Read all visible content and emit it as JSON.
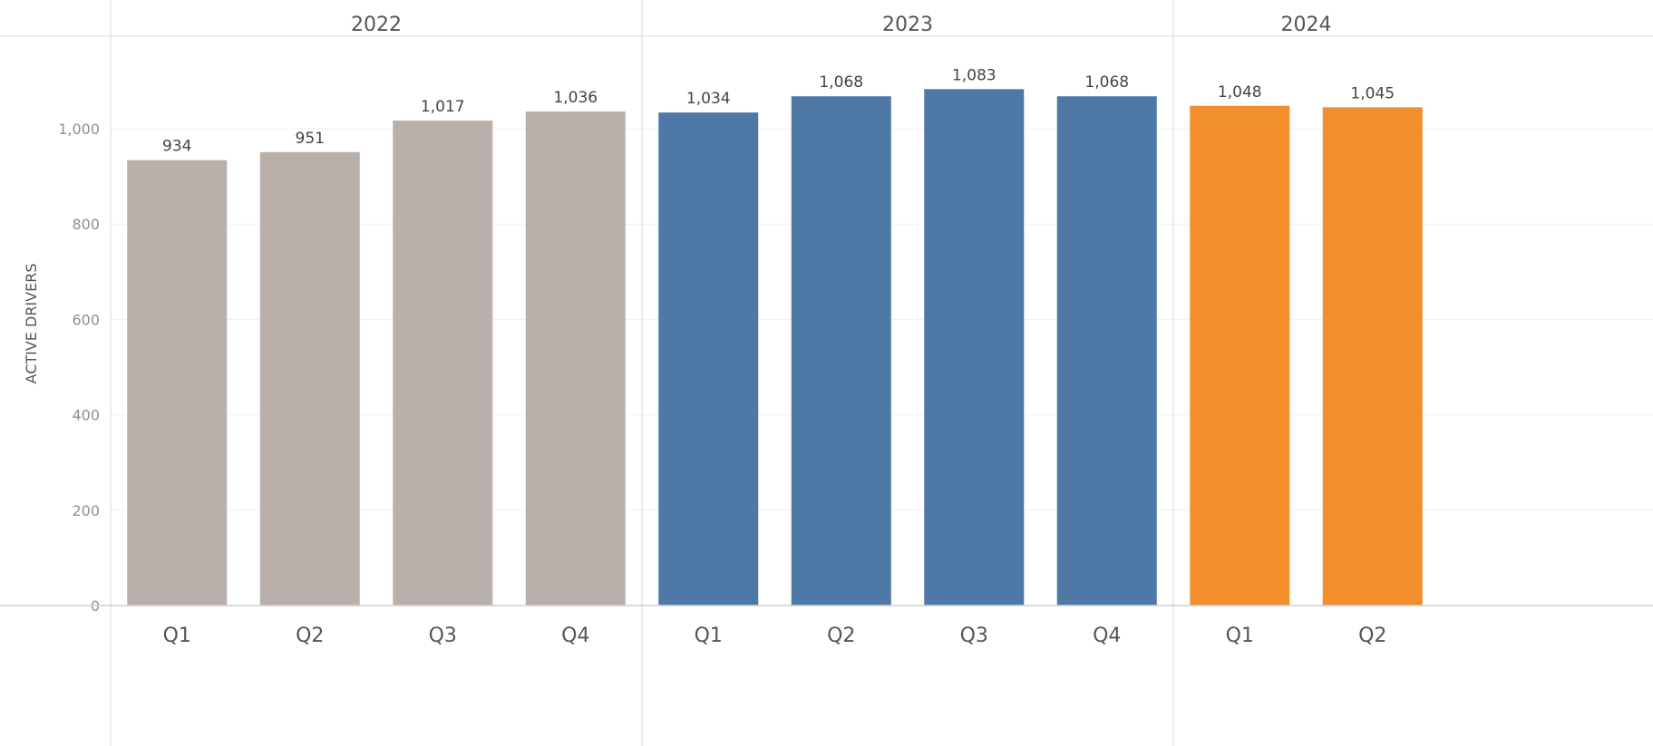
{
  "chart_data": {
    "type": "bar",
    "ylabel": "ACTIVE DRIVERS",
    "ylim": [
      0,
      1200
    ],
    "yticks": [
      0,
      200,
      400,
      600,
      800,
      1000
    ],
    "ytick_labels": [
      "0",
      "200",
      "400",
      "600",
      "800",
      "1,000"
    ],
    "grid": true,
    "groups": [
      {
        "name": "2022",
        "color": "#b9b0ab",
        "categories": [
          "Q1",
          "Q2",
          "Q3",
          "Q4"
        ],
        "values": [
          934,
          951,
          1017,
          1036
        ],
        "labels": [
          "934",
          "951",
          "1,017",
          "1,036"
        ]
      },
      {
        "name": "2023",
        "color": "#4e79a7",
        "categories": [
          "Q1",
          "Q2",
          "Q3",
          "Q4"
        ],
        "values": [
          1034,
          1068,
          1083,
          1068
        ],
        "labels": [
          "1,034",
          "1,068",
          "1,083",
          "1,068"
        ]
      },
      {
        "name": "2024",
        "color": "#f28e2b",
        "categories": [
          "Q1",
          "Q2"
        ],
        "values": [
          1048,
          1045
        ],
        "labels": [
          "1,048",
          "1,045"
        ]
      }
    ]
  }
}
